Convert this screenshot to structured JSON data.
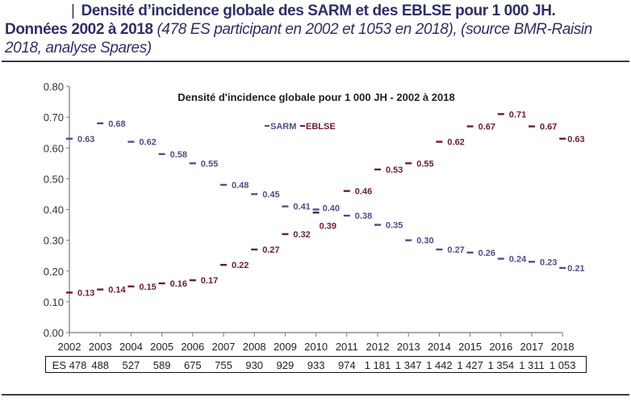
{
  "header": {
    "line1": "Densité d’incidence globale des SARM et des EBLSE pour 1 000 JH.",
    "line2_normal": "Données 2002 à 2018 ",
    "line2_italic": "(478 ES participant en 2002 et 1053 en 2018), (source BMR-Raisin 2018, analyse Spares)"
  },
  "colors": {
    "sarm": "#4b4f8a",
    "eblse": "#6b1a3a",
    "axis": "#7a7a7a",
    "text": "#222222"
  },
  "chart_data": {
    "type": "line",
    "title": "Densité d'incidence globale pour 1 000 JH - 2002 à 2018",
    "xlabel": "",
    "ylabel": "",
    "ylim": [
      0,
      0.8
    ],
    "yticks": [
      "0.00",
      "0.10",
      "0.20",
      "0.30",
      "0.40",
      "0.50",
      "0.60",
      "0.70",
      "0.80"
    ],
    "grid": false,
    "legend": "top-center",
    "x": [
      "2002",
      "2003",
      "2004",
      "2005",
      "2006",
      "2007",
      "2008",
      "2009",
      "2010",
      "2011",
      "2012",
      "2013",
      "2014",
      "2015",
      "2016",
      "2017",
      "2018"
    ],
    "series": [
      {
        "name": "SARM",
        "marker": "dash",
        "values": [
          0.63,
          0.68,
          0.62,
          0.58,
          0.55,
          0.48,
          0.45,
          0.41,
          0.4,
          0.38,
          0.35,
          0.3,
          0.27,
          0.26,
          0.24,
          0.23,
          0.21
        ],
        "labels": [
          "0.63",
          "0.68",
          "0.62",
          "0.58",
          "0.55",
          "0.48",
          "0.45",
          "0.41",
          "0.40",
          "0.38",
          "0.35",
          "0.30",
          "0.27",
          "0.26",
          "0.24",
          "0.23",
          "0.21"
        ]
      },
      {
        "name": "EBLSE",
        "marker": "dash",
        "values": [
          0.13,
          0.14,
          0.15,
          0.16,
          0.17,
          0.22,
          0.27,
          0.32,
          0.39,
          0.46,
          0.53,
          0.55,
          0.62,
          0.67,
          0.71,
          0.67,
          0.63
        ],
        "labels": [
          "0.13",
          "0.14",
          "0.15",
          "0.16",
          "0.17",
          "0.22",
          "0.27",
          "0.32",
          "0.39",
          "0.46",
          "0.53",
          "0.55",
          "0.62",
          "0.67",
          "0.71",
          "0.67",
          "0.63"
        ]
      }
    ],
    "table": {
      "row_label": "ES",
      "values": [
        "478",
        "488",
        "527",
        "589",
        "675",
        "755",
        "930",
        "929",
        "933",
        "974",
        "1 181",
        "1 347",
        "1 442",
        "1 427",
        "1 354",
        "1 311",
        "1 053"
      ]
    }
  }
}
